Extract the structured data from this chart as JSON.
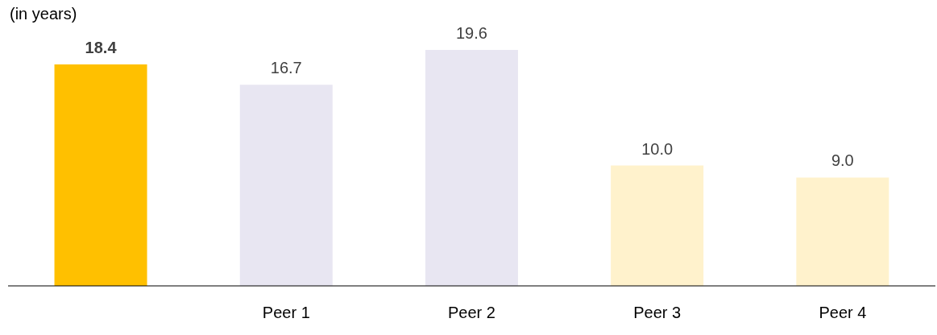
{
  "chart_data": {
    "type": "bar",
    "ylabel": "(in years)",
    "categories": [
      null,
      "Peer 1",
      "Peer 2",
      "Peer 3",
      "Peer 4"
    ],
    "values": [
      18.4,
      16.7,
      19.6,
      10.0,
      9.0
    ],
    "value_labels": [
      "18.4",
      "16.7",
      "19.6",
      "10.0",
      "9.0"
    ],
    "colors": [
      "#ffc000",
      "#e8e6f2",
      "#e8e6f2",
      "#fff2cc",
      "#fff2cc"
    ],
    "tick_labels": "x"
  }
}
